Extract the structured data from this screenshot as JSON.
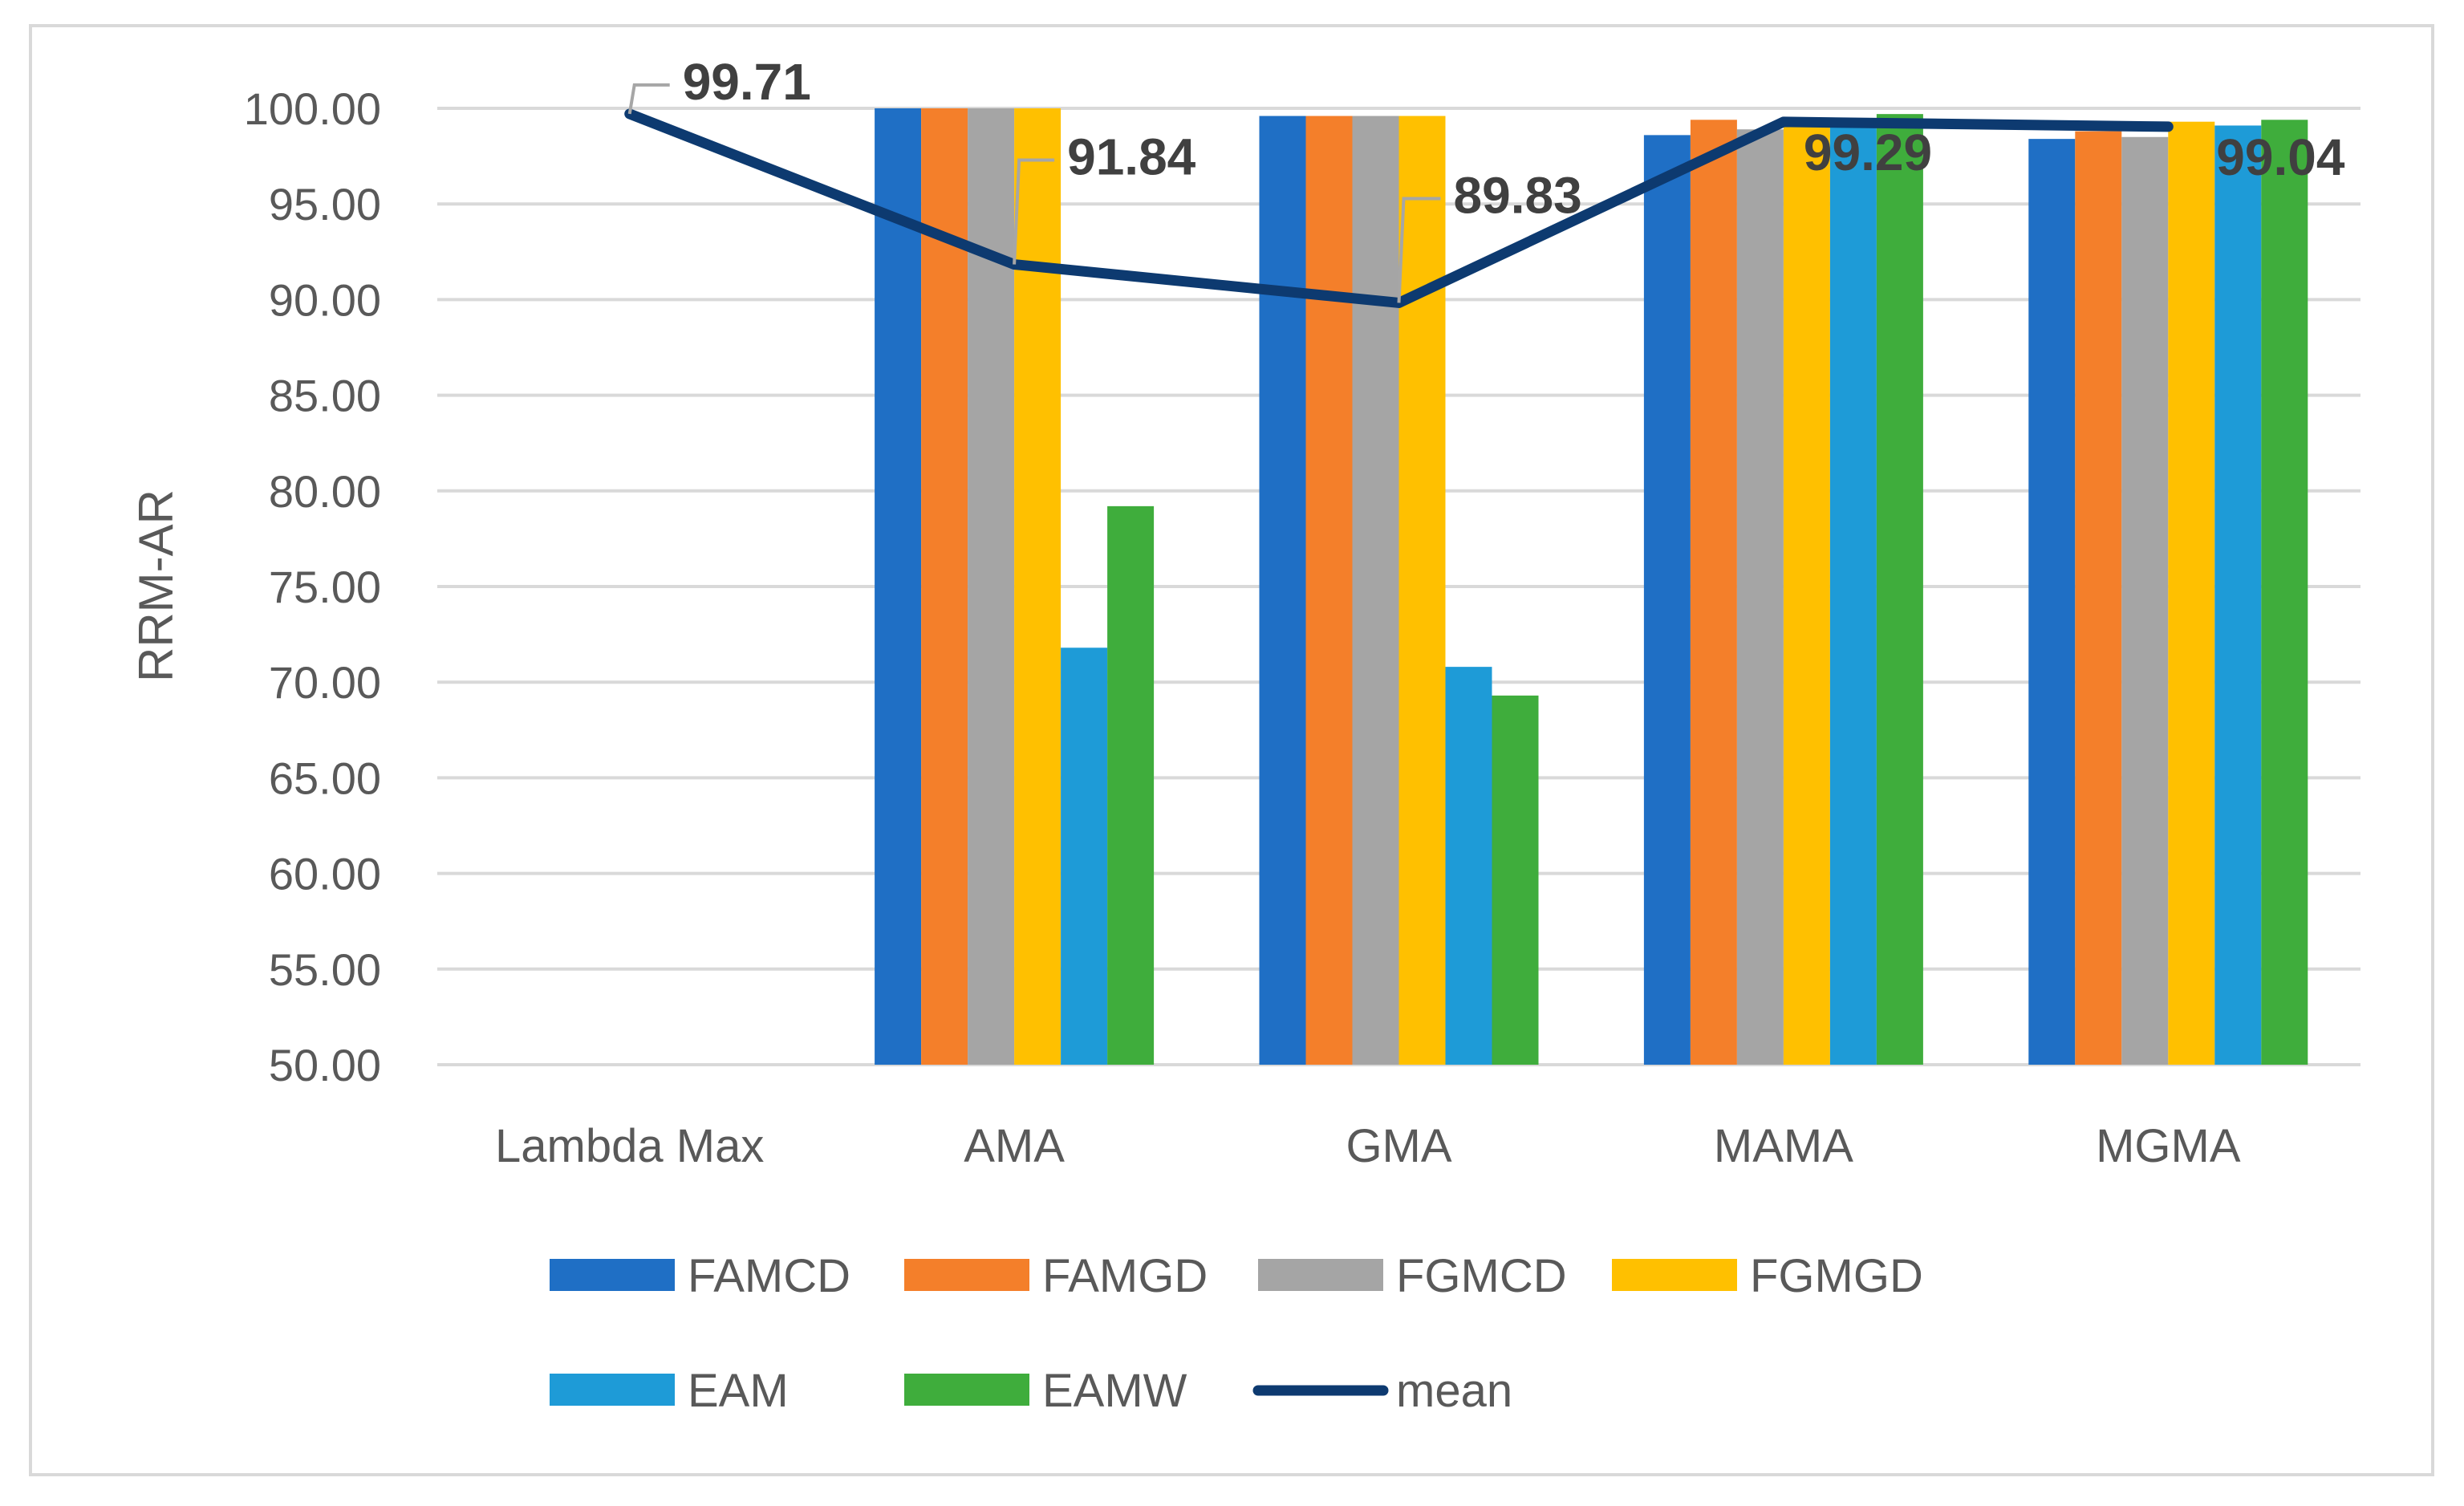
{
  "chart_data": {
    "type": "bar",
    "title": "",
    "xlabel": "",
    "ylabel": "RRM-AR",
    "ylim": [
      50,
      100
    ],
    "yticks": [
      "50.00",
      "55.00",
      "60.00",
      "65.00",
      "70.00",
      "75.00",
      "80.00",
      "85.00",
      "90.00",
      "95.00",
      "100.00"
    ],
    "grid": true,
    "legend_position": "bottom",
    "categories": [
      "Lambda Max",
      "AMA",
      "GMA",
      "MAMA",
      "MGMA"
    ],
    "series": [
      {
        "name": "FAMCD",
        "color": "#1f6fc5",
        "values": [
          null,
          100,
          99.6,
          98.6,
          98.4
        ]
      },
      {
        "name": "FAMGD",
        "color": "#f47f2a",
        "values": [
          null,
          100,
          99.6,
          99.4,
          98.8
        ]
      },
      {
        "name": "FGMCD",
        "color": "#a5a5a5",
        "values": [
          null,
          100,
          99.6,
          98.9,
          98.5
        ]
      },
      {
        "name": "FGMGD",
        "color": "#ffc000",
        "values": [
          null,
          100,
          99.6,
          99.2,
          99.3
        ]
      },
      {
        "name": "EAM",
        "color": "#1e9bd7",
        "values": [
          null,
          71.8,
          70.8,
          99.1,
          99.1
        ]
      },
      {
        "name": "EAMW",
        "color": "#3fad3c",
        "values": [
          null,
          79.2,
          69.3,
          99.7,
          99.4
        ]
      }
    ],
    "line": {
      "name": "mean",
      "color": "#0d3a70",
      "values": [
        99.71,
        91.84,
        89.83,
        99.29,
        99.04
      ],
      "labels": [
        "99.71",
        "91.84",
        "89.83",
        "99.29",
        "99.04"
      ]
    }
  }
}
